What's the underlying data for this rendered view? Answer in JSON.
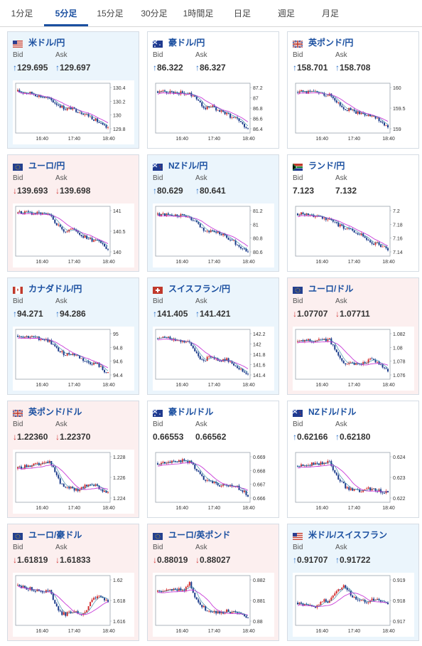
{
  "tabs": [
    "1分足",
    "5分足",
    "15分足",
    "30分足",
    "1時間足",
    "日足",
    "週足",
    "月足"
  ],
  "active_tab": 1,
  "bid_label": "Bid",
  "ask_label": "Ask",
  "x_labels": [
    "16:40",
    "17:40",
    "18:40"
  ],
  "colors": {
    "up": "#1a3a8a",
    "down": "#d32f2f",
    "ma": "#c83cd8",
    "thin": "#2a7fa0"
  },
  "cards": [
    {
      "name": "usd-jpy",
      "title": "米ドル/円",
      "flag": "us",
      "bg": "up",
      "dir": "up",
      "bid": "129.695",
      "ask": "129.697",
      "y_ticks": [
        "130.4",
        "130.2",
        "130",
        "129.8"
      ],
      "trend": [
        0.88,
        0.86,
        0.85,
        0.82,
        0.78,
        0.74,
        0.7,
        0.62,
        0.55,
        0.48,
        0.5,
        0.45,
        0.4,
        0.35,
        0.28,
        0.2,
        0.1,
        0.04
      ]
    },
    {
      "name": "aud-jpy",
      "title": "豪ドル/円",
      "flag": "au",
      "bg": "flat",
      "dir": "up",
      "bid": "86.322",
      "ask": "86.327",
      "y_ticks": [
        "87.2",
        "87",
        "86.8",
        "86.6",
        "86.4"
      ],
      "trend": [
        0.88,
        0.87,
        0.87,
        0.86,
        0.85,
        0.84,
        0.82,
        0.78,
        0.62,
        0.5,
        0.55,
        0.48,
        0.42,
        0.36,
        0.3,
        0.26,
        0.12,
        0.06
      ]
    },
    {
      "name": "gbp-jpy",
      "title": "英ポンド/円",
      "flag": "gb",
      "bg": "flat",
      "dir": "up",
      "bid": "158.701",
      "ask": "158.708",
      "y_ticks": [
        "160",
        "159.5",
        "159"
      ],
      "trend": [
        0.86,
        0.87,
        0.86,
        0.86,
        0.84,
        0.82,
        0.8,
        0.7,
        0.58,
        0.48,
        0.46,
        0.4,
        0.38,
        0.36,
        0.3,
        0.25,
        0.15,
        0.06
      ]
    },
    {
      "name": "eur-jpy",
      "title": "ユーロ/円",
      "flag": "eu",
      "bg": "down",
      "dir": "down",
      "bid": "139.693",
      "ask": "139.698",
      "y_ticks": [
        "141",
        "140.5",
        "140"
      ],
      "trend": [
        0.92,
        0.92,
        0.92,
        0.9,
        0.9,
        0.88,
        0.85,
        0.72,
        0.58,
        0.5,
        0.55,
        0.52,
        0.4,
        0.35,
        0.3,
        0.33,
        0.2,
        0.05
      ]
    },
    {
      "name": "nzd-jpy",
      "title": "NZドル/円",
      "flag": "nz",
      "bg": "up",
      "dir": "up",
      "bid": "80.629",
      "ask": "80.641",
      "y_ticks": [
        "81.2",
        "81",
        "80.8",
        "80.6"
      ],
      "trend": [
        0.88,
        0.88,
        0.87,
        0.86,
        0.85,
        0.84,
        0.8,
        0.7,
        0.6,
        0.52,
        0.5,
        0.48,
        0.44,
        0.36,
        0.3,
        0.2,
        0.1,
        0.05
      ]
    },
    {
      "name": "zar-jpy",
      "title": "ランド/円",
      "flag": "za",
      "bg": "flat",
      "dir": "none",
      "bid": "7.123",
      "ask": "7.132",
      "y_ticks": [
        "7.2",
        "7.18",
        "7.16",
        "7.14"
      ],
      "trend": [
        0.9,
        0.89,
        0.88,
        0.86,
        0.84,
        0.8,
        0.76,
        0.68,
        0.62,
        0.58,
        0.52,
        0.46,
        0.42,
        0.3,
        0.2,
        0.24,
        0.15,
        0.06
      ]
    },
    {
      "name": "cad-jpy",
      "title": "カナダドル/円",
      "flag": "ca",
      "bg": "up",
      "dir": "up",
      "bid": "94.271",
      "ask": "94.286",
      "y_ticks": [
        "95",
        "94.8",
        "94.6",
        "94.4"
      ],
      "trend": [
        0.92,
        0.91,
        0.9,
        0.88,
        0.86,
        0.84,
        0.8,
        0.66,
        0.55,
        0.5,
        0.52,
        0.48,
        0.4,
        0.32,
        0.3,
        0.28,
        0.15,
        0.06
      ]
    },
    {
      "name": "chf-jpy",
      "title": "スイスフラン/円",
      "flag": "ch",
      "bg": "up",
      "dir": "up",
      "bid": "141.405",
      "ask": "141.421",
      "y_ticks": [
        "142.2",
        "142",
        "141.8",
        "141.6",
        "141.4"
      ],
      "trend": [
        0.86,
        0.88,
        0.86,
        0.85,
        0.83,
        0.8,
        0.75,
        0.55,
        0.42,
        0.38,
        0.45,
        0.4,
        0.35,
        0.38,
        0.3,
        0.22,
        0.12,
        0.06
      ]
    },
    {
      "name": "eur-usd",
      "title": "ユーロ/ドル",
      "flag": "eu",
      "bg": "down",
      "dir": "down",
      "bid": "1.07707",
      "ask": "1.07711",
      "y_ticks": [
        "1.082",
        "1.08",
        "1.078",
        "1.076"
      ],
      "trend": [
        0.78,
        0.8,
        0.82,
        0.8,
        0.82,
        0.82,
        0.84,
        0.6,
        0.4,
        0.3,
        0.32,
        0.28,
        0.3,
        0.34,
        0.38,
        0.34,
        0.22,
        0.1
      ]
    },
    {
      "name": "gbp-usd",
      "title": "英ポンド/ドル",
      "flag": "gb",
      "bg": "down",
      "dir": "down",
      "bid": "1.22360",
      "ask": "1.22370",
      "y_ticks": [
        "1.228",
        "1.226",
        "1.224"
      ],
      "trend": [
        0.7,
        0.74,
        0.76,
        0.78,
        0.8,
        0.82,
        0.85,
        0.62,
        0.38,
        0.3,
        0.28,
        0.22,
        0.25,
        0.32,
        0.36,
        0.3,
        0.2,
        0.12
      ]
    },
    {
      "name": "aud-usd",
      "title": "豪ドル/ドル",
      "flag": "au",
      "bg": "flat",
      "dir": "none",
      "bid": "0.66553",
      "ask": "0.66562",
      "y_ticks": [
        "0.669",
        "0.668",
        "0.667",
        "0.666"
      ],
      "trend": [
        0.82,
        0.84,
        0.86,
        0.86,
        0.88,
        0.88,
        0.86,
        0.7,
        0.55,
        0.45,
        0.4,
        0.34,
        0.3,
        0.32,
        0.3,
        0.28,
        0.2,
        0.08
      ]
    },
    {
      "name": "nzd-usd",
      "title": "NZドル/ドル",
      "flag": "nz",
      "bg": "flat",
      "dir": "up",
      "bid": "0.62166",
      "ask": "0.62180",
      "y_ticks": [
        "0.624",
        "0.623",
        "0.622"
      ],
      "trend": [
        0.76,
        0.78,
        0.8,
        0.8,
        0.82,
        0.84,
        0.85,
        0.62,
        0.42,
        0.28,
        0.22,
        0.2,
        0.18,
        0.24,
        0.22,
        0.2,
        0.18,
        0.15
      ]
    },
    {
      "name": "eur-aud",
      "title": "ユーロ/豪ドル",
      "flag": "eu",
      "bg": "down",
      "dir": "down",
      "bid": "1.61819",
      "ask": "1.61833",
      "y_ticks": [
        "1.62",
        "1.618",
        "1.616"
      ],
      "trend": [
        0.85,
        0.8,
        0.78,
        0.74,
        0.72,
        0.7,
        0.72,
        0.45,
        0.22,
        0.18,
        0.25,
        0.22,
        0.2,
        0.26,
        0.55,
        0.6,
        0.52,
        0.5
      ]
    },
    {
      "name": "eur-gbp",
      "title": "ユーロ/英ポンド",
      "flag": "eu",
      "bg": "down",
      "dir": "down",
      "bid": "0.88019",
      "ask": "0.88027",
      "y_ticks": [
        "0.882",
        "0.881",
        "0.88"
      ],
      "trend": [
        0.7,
        0.7,
        0.72,
        0.74,
        0.75,
        0.76,
        0.9,
        0.6,
        0.4,
        0.3,
        0.26,
        0.24,
        0.22,
        0.26,
        0.24,
        0.2,
        0.15,
        0.12
      ]
    },
    {
      "name": "usd-chf",
      "title": "米ドル/スイスフラン",
      "flag": "us-ch",
      "bg": "up",
      "dir": "up",
      "bid": "0.91707",
      "ask": "0.91722",
      "y_ticks": [
        "0.919",
        "0.918",
        "0.917"
      ],
      "trend": [
        0.45,
        0.4,
        0.38,
        0.35,
        0.42,
        0.5,
        0.48,
        0.7,
        0.78,
        0.82,
        0.62,
        0.55,
        0.5,
        0.48,
        0.52,
        0.5,
        0.44,
        0.4
      ]
    }
  ]
}
